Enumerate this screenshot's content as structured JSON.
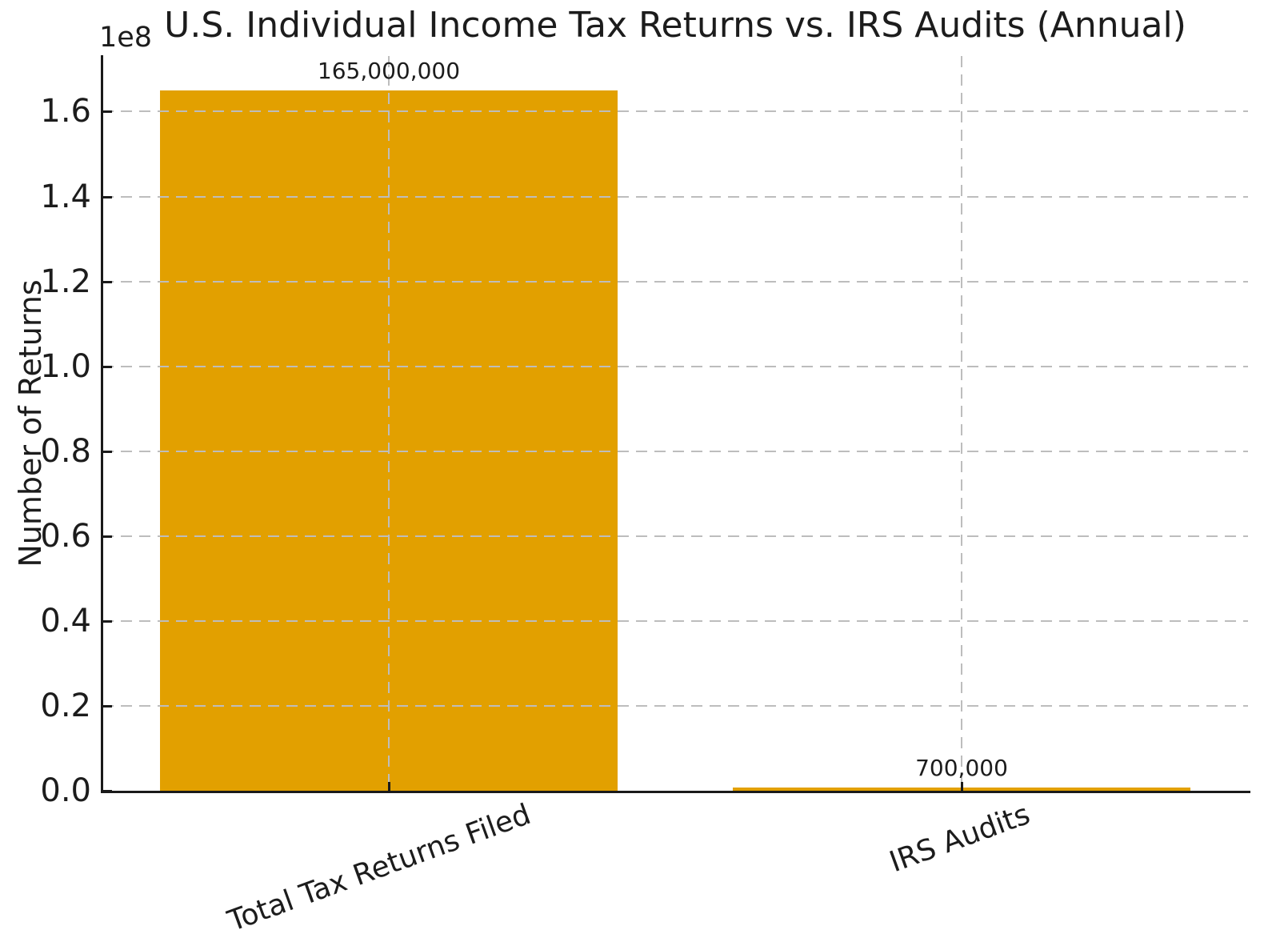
{
  "chart_data": {
    "type": "bar",
    "title": "U.S. Individual Income Tax Returns vs. IRS Audits (Annual)",
    "ylabel": "Number of Returns",
    "offset_text": "1e8",
    "categories": [
      "Total Tax Returns Filed",
      "IRS Audits"
    ],
    "values": [
      165000000,
      700000
    ],
    "bar_labels": [
      "165,000,000",
      "700,000"
    ],
    "ytick_labels": [
      "0.0",
      "0.2",
      "0.4",
      "0.6",
      "0.8",
      "1.0",
      "1.2",
      "1.4",
      "1.6"
    ],
    "ytick_scale": 100000000,
    "ylim": [
      0,
      173100000
    ],
    "grid": "dashed",
    "legend": false,
    "x_tick_rotation_deg": 20,
    "colors": {
      "bar": "#E2A000",
      "grid": "#BDBDBD",
      "text": "#1C1C1C",
      "spine": "#1A1A1A",
      "background": "#FFFFFF"
    }
  }
}
